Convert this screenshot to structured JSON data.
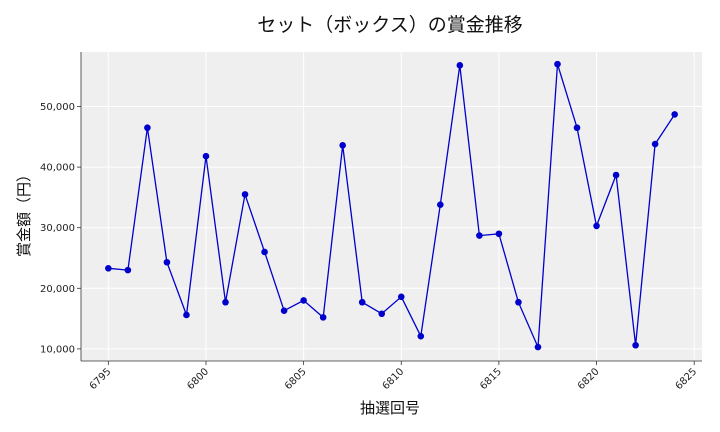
{
  "chart_data": {
    "type": "line",
    "title": "セット（ボックス）の賞金推移",
    "xlabel": "抽選回号",
    "ylabel": "賞金額（円）",
    "x": [
      6795,
      6796,
      6797,
      6798,
      6799,
      6800,
      6801,
      6802,
      6803,
      6804,
      6805,
      6806,
      6807,
      6808,
      6809,
      6810,
      6811,
      6812,
      6813,
      6814,
      6815,
      6816,
      6817,
      6818,
      6819,
      6820,
      6821,
      6822,
      6823,
      6824
    ],
    "series": [
      {
        "values": [
          23300,
          23000,
          46500,
          24300,
          15600,
          41800,
          17700,
          35500,
          26000,
          16300,
          18000,
          15200,
          43600,
          17700,
          15800,
          18600,
          12100,
          33800,
          56800,
          28700,
          29000,
          17700,
          10300,
          57000,
          46500,
          30300,
          38700,
          10600,
          43800,
          48700
        ]
      }
    ],
    "xlim": [
      6793.6,
      6825.4
    ],
    "ylim": [
      8000,
      59000
    ],
    "xticks": [
      6795,
      6800,
      6805,
      6810,
      6815,
      6820,
      6825
    ],
    "yticks": [
      10000,
      20000,
      30000,
      40000,
      50000
    ],
    "ytick_labels": [
      "10,000",
      "20,000",
      "30,000",
      "40,000",
      "50,000"
    ],
    "grid": true,
    "line_color": "#0000cd",
    "marker_color": "#0000cd",
    "background_color": "#efefef"
  }
}
